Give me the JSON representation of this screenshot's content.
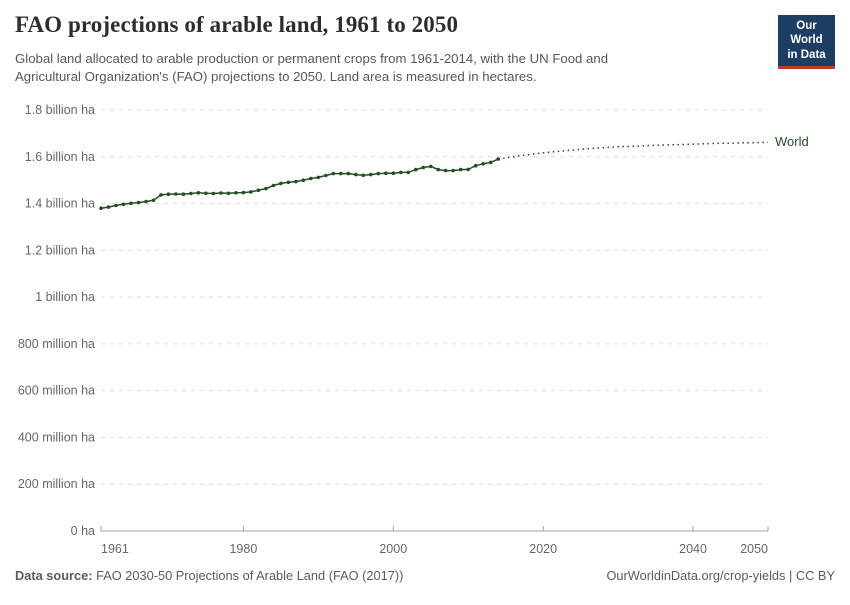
{
  "header": {
    "title": "FAO projections of arable land, 1961 to 2050",
    "subtitle": "Global land allocated to arable production or permanent crops from 1961-2014, with the UN Food and Agricultural Organization's (FAO) projections to 2050. Land area is measured in hectares.",
    "logo": {
      "line1": "Our World",
      "line2": "in Data",
      "bg_color": "#1d3d63",
      "accent_color": "#c5392d"
    }
  },
  "chart_data": {
    "type": "line",
    "title": "FAO projections of arable land, 1961 to 2050",
    "unit": "billion ha",
    "xlim": [
      1961,
      2050
    ],
    "ylim": [
      0,
      1.8
    ],
    "grid": "horizontal-dashed",
    "x_ticks": [
      1961,
      1980,
      2000,
      2020,
      2040,
      2050
    ],
    "y_ticks": [
      {
        "value": 0,
        "label": "0 ha"
      },
      {
        "value": 0.2,
        "label": "200 million ha"
      },
      {
        "value": 0.4,
        "label": "400 million ha"
      },
      {
        "value": 0.6,
        "label": "600 million ha"
      },
      {
        "value": 0.8,
        "label": "800 million ha"
      },
      {
        "value": 1,
        "label": "1 billion ha"
      },
      {
        "value": 1.2,
        "label": "1.2 billion ha"
      },
      {
        "value": 1.4,
        "label": "1.4 billion ha"
      },
      {
        "value": 1.6,
        "label": "1.6 billion ha"
      },
      {
        "value": 1.8,
        "label": "1.8 billion ha"
      }
    ],
    "series_label": "World",
    "series": [
      {
        "name": "World (historical 1961-2014)",
        "style": "solid-with-dots",
        "color": "#234f23",
        "x": [
          1961,
          1962,
          1963,
          1964,
          1965,
          1966,
          1967,
          1968,
          1969,
          1970,
          1971,
          1972,
          1973,
          1974,
          1975,
          1976,
          1977,
          1978,
          1979,
          1980,
          1981,
          1982,
          1983,
          1984,
          1985,
          1986,
          1987,
          1988,
          1989,
          1990,
          1991,
          1992,
          1993,
          1994,
          1995,
          1996,
          1997,
          1998,
          1999,
          2000,
          2001,
          2002,
          2003,
          2004,
          2005,
          2006,
          2007,
          2008,
          2009,
          2010,
          2011,
          2012,
          2013,
          2014
        ],
        "values": [
          1.38,
          1.385,
          1.392,
          1.397,
          1.401,
          1.404,
          1.409,
          1.414,
          1.437,
          1.44,
          1.441,
          1.44,
          1.443,
          1.446,
          1.444,
          1.443,
          1.445,
          1.444,
          1.446,
          1.447,
          1.45,
          1.457,
          1.464,
          1.477,
          1.486,
          1.491,
          1.494,
          1.5,
          1.507,
          1.512,
          1.52,
          1.528,
          1.528,
          1.528,
          1.524,
          1.521,
          1.524,
          1.528,
          1.53,
          1.53,
          1.533,
          1.533,
          1.545,
          1.554,
          1.559,
          1.545,
          1.541,
          1.541,
          1.545,
          1.546,
          1.562,
          1.57,
          1.576,
          1.59
        ]
      },
      {
        "name": "World (FAO projection 2014-2050)",
        "style": "dotted",
        "color": "#234f23",
        "x": [
          2014,
          2015,
          2016,
          2017,
          2018,
          2019,
          2020,
          2021,
          2022,
          2023,
          2024,
          2025,
          2026,
          2027,
          2028,
          2029,
          2030,
          2031,
          2032,
          2033,
          2034,
          2035,
          2036,
          2037,
          2038,
          2039,
          2040,
          2041,
          2042,
          2043,
          2044,
          2045,
          2046,
          2047,
          2048,
          2049,
          2050
        ],
        "values": [
          1.59,
          1.595,
          1.6,
          1.605,
          1.609,
          1.613,
          1.617,
          1.62,
          1.623,
          1.626,
          1.629,
          1.632,
          1.634,
          1.637,
          1.639,
          1.641,
          1.643,
          1.644,
          1.645,
          1.646,
          1.648,
          1.649,
          1.65,
          1.651,
          1.652,
          1.653,
          1.654,
          1.655,
          1.656,
          1.657,
          1.658,
          1.658,
          1.659,
          1.66,
          1.66,
          1.661,
          1.662
        ]
      }
    ],
    "colors": {
      "line": "#234f23",
      "grid": "#dcdcdc",
      "axis": "#a1a1a1",
      "tick_text": "#666666"
    }
  },
  "footer": {
    "datasource_label": "Data source:",
    "datasource": " FAO 2030-50 Projections of Arable Land (FAO (2017))",
    "right": "OurWorldinData.org/crop-yields | CC BY"
  }
}
